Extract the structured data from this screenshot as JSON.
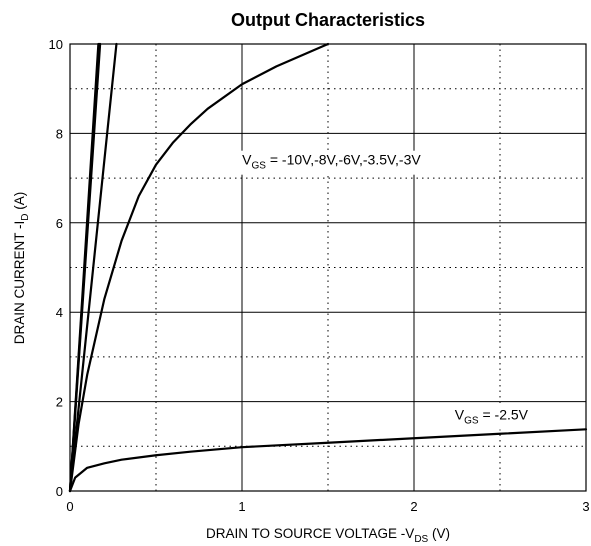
{
  "chart_data": {
    "type": "line",
    "title": "Output Characteristics",
    "xlabel": {
      "main": "DRAIN TO SOURCE VOLTAGE    -V",
      "sub": "DS",
      "unit": "(V)"
    },
    "ylabel": {
      "main": "DRAIN CURRENT    -I",
      "sub": "D",
      "unit": "(A)"
    },
    "xlim": [
      0,
      3
    ],
    "ylim": [
      0,
      10
    ],
    "x_ticks": [
      "0",
      "1",
      "2",
      "3"
    ],
    "y_ticks": [
      "0",
      "2",
      "4",
      "6",
      "8",
      "10"
    ],
    "grid": {
      "major": "solid",
      "minor": "dotted"
    },
    "annotations": [
      {
        "id": "vgs-high",
        "prefix": "V",
        "sub": "GS",
        "text": " = -10V,-8V,-6V,-3.5V,-3V"
      },
      {
        "id": "vgs-low",
        "prefix": "V",
        "sub": "GS",
        "text": " = -2.5V"
      }
    ],
    "series": [
      {
        "values": [
          [
            0,
            0
          ],
          [
            0.175,
            10
          ]
        ]
      },
      {
        "values": [
          [
            0,
            0
          ],
          [
            0.17,
            10
          ]
        ]
      },
      {
        "values": [
          [
            0,
            0
          ],
          [
            0.165,
            10
          ]
        ]
      },
      {
        "values": [
          [
            0,
            0
          ],
          [
            0.27,
            10
          ]
        ]
      },
      {
        "values": [
          [
            0,
            0
          ],
          [
            0.05,
            1.5
          ],
          [
            0.1,
            2.6
          ],
          [
            0.2,
            4.3
          ],
          [
            0.3,
            5.6
          ],
          [
            0.4,
            6.6
          ],
          [
            0.5,
            7.3
          ],
          [
            0.6,
            7.8
          ],
          [
            0.7,
            8.2
          ],
          [
            0.8,
            8.55
          ],
          [
            1.0,
            9.1
          ],
          [
            1.2,
            9.5
          ],
          [
            1.5,
            10.0
          ]
        ]
      },
      {
        "values": [
          [
            0,
            0
          ],
          [
            0.03,
            0.3
          ],
          [
            0.1,
            0.52
          ],
          [
            0.2,
            0.62
          ],
          [
            0.3,
            0.7
          ],
          [
            0.5,
            0.8
          ],
          [
            0.7,
            0.88
          ],
          [
            1.0,
            0.98
          ],
          [
            1.5,
            1.08
          ],
          [
            2.0,
            1.18
          ],
          [
            2.5,
            1.28
          ],
          [
            3.0,
            1.38
          ]
        ]
      }
    ]
  }
}
